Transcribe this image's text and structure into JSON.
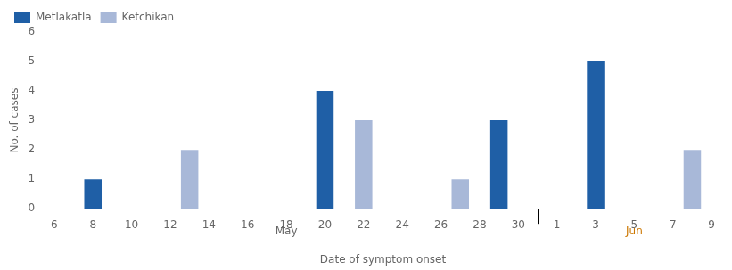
{
  "chart_data": {
    "type": "bar",
    "xlabel": "Date of symptom onset",
    "ylabel": "No. of cases",
    "categories": [
      "6",
      null,
      "8",
      null,
      "10",
      null,
      "12",
      null,
      "14",
      null,
      "16",
      null,
      "18",
      null,
      "20",
      null,
      "22",
      null,
      "24",
      null,
      "26",
      null,
      "28",
      null,
      "30",
      null,
      "1",
      null,
      "3",
      null,
      "5",
      null,
      "7",
      null,
      "9"
    ],
    "series": [
      {
        "name": "Metlakatla",
        "color": "#1f5fa6",
        "values": [
          null,
          null,
          1,
          null,
          null,
          null,
          null,
          null,
          null,
          null,
          null,
          null,
          null,
          null,
          4,
          null,
          null,
          null,
          null,
          null,
          null,
          null,
          null,
          3,
          null,
          null,
          null,
          null,
          5,
          null,
          null,
          null,
          null,
          null,
          null
        ]
      },
      {
        "name": "Ketchikan",
        "color": "#a8b8d8",
        "values": [
          null,
          null,
          null,
          null,
          null,
          null,
          null,
          2,
          null,
          null,
          null,
          null,
          null,
          null,
          null,
          null,
          3,
          null,
          null,
          null,
          null,
          1,
          null,
          null,
          null,
          null,
          null,
          null,
          null,
          null,
          null,
          null,
          null,
          2,
          null
        ]
      }
    ],
    "annotations": [
      {
        "text": "May"
      },
      {
        "text": "Jun",
        "color": "#cc7700"
      }
    ],
    "ylim": [
      0,
      6
    ],
    "yticks": [
      0,
      1,
      2,
      3,
      4,
      5,
      6
    ],
    "grid": false,
    "legend": "upper left"
  }
}
